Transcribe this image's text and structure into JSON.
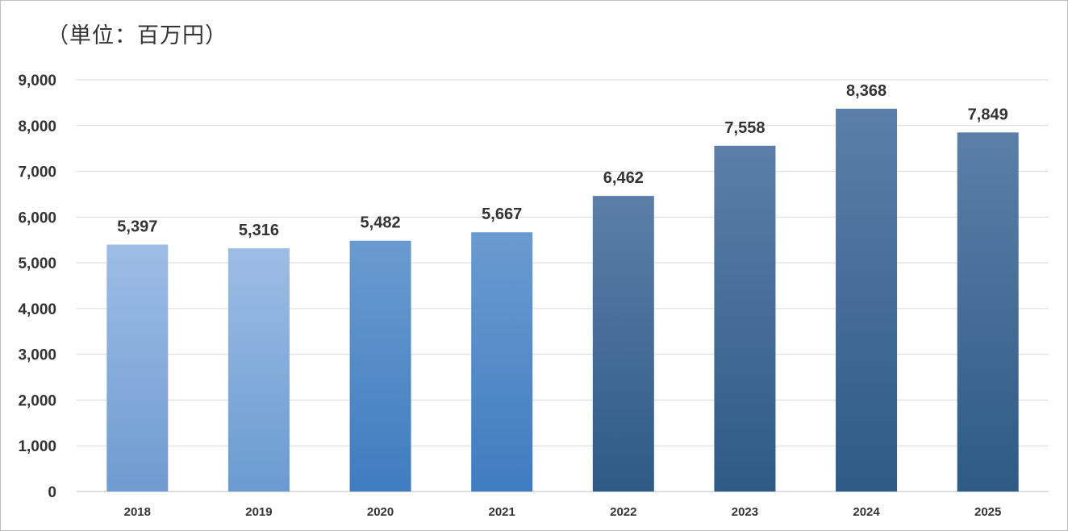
{
  "unit_label": "（単位：百万円）",
  "colors": {
    "gridline": "#d9d9d9",
    "axis": "#bfbfbf",
    "text": "#333333",
    "bar_light_top": "#9dbde6",
    "bar_light_bottom": "#6f9bd0",
    "bar_mid_top": "#6a9bd0",
    "bar_mid_bottom": "#3f7cbf",
    "bar_dark_top": "#5b7fa8",
    "bar_dark_bottom": "#2e5a86"
  },
  "chart_data": {
    "type": "bar",
    "categories": [
      "2018",
      "2019",
      "2020",
      "2021",
      "2022",
      "2023",
      "2024",
      "2025"
    ],
    "values": [
      5397,
      5316,
      5482,
      5667,
      6462,
      7558,
      8368,
      7849
    ],
    "value_labels": [
      "5,397",
      "5,316",
      "5,482",
      "5,667",
      "6,462",
      "7,558",
      "8,368",
      "7,849"
    ],
    "y_ticks": [
      0,
      1000,
      2000,
      3000,
      4000,
      5000,
      6000,
      7000,
      8000,
      9000
    ],
    "y_tick_labels": [
      "0",
      "1,000",
      "2,000",
      "3,000",
      "4,000",
      "5,000",
      "6,000",
      "7,000",
      "8,000",
      "9,000"
    ],
    "ylim": [
      0,
      9000
    ],
    "grid": true,
    "legend": false,
    "title": "",
    "xlabel": "",
    "ylabel": ""
  }
}
